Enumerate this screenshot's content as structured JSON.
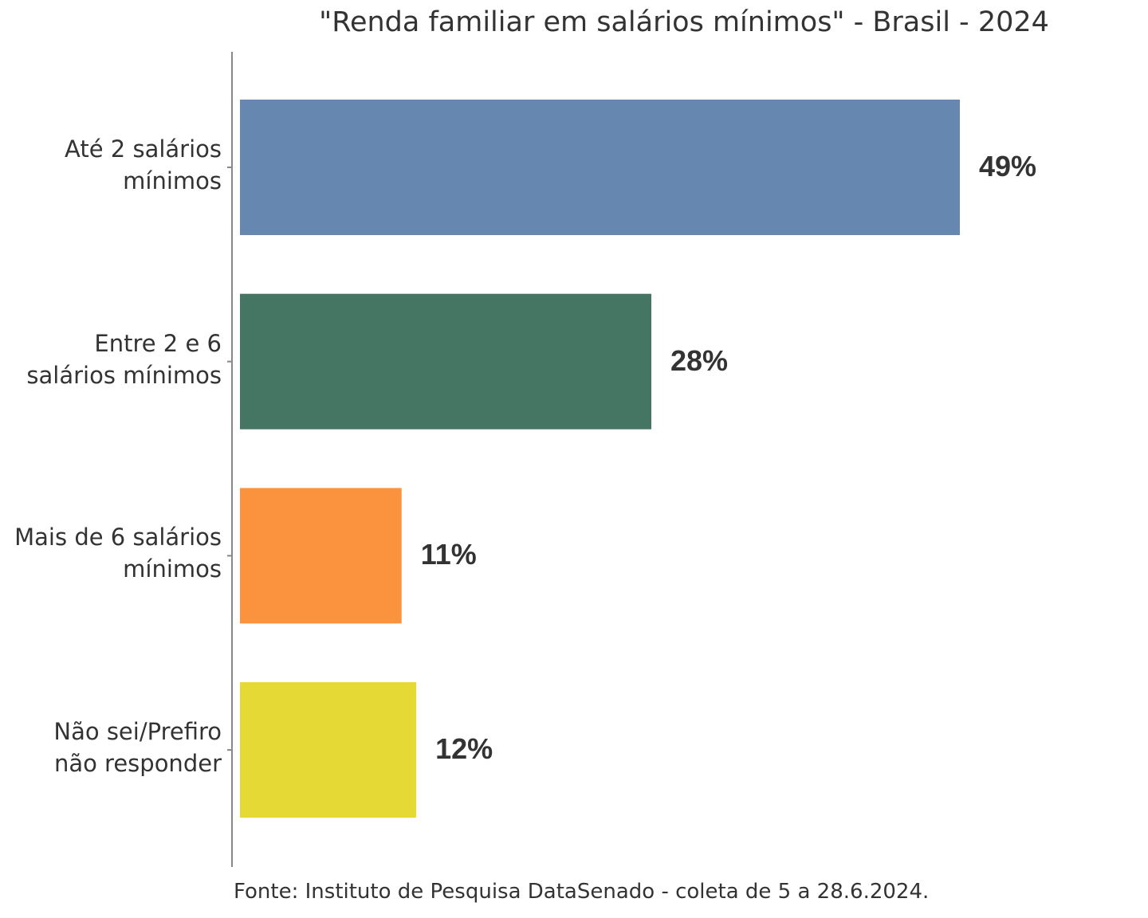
{
  "chart_data": {
    "type": "bar",
    "orientation": "horizontal",
    "title": "\"Renda familiar em salários mínimos\" - Brasil - 2024",
    "source": "Fonte: Instituto de Pesquisa DataSenado - coleta de 5 a 28.6.2024.",
    "categories": [
      "Até 2 salários mínimos",
      "Entre 2 e 6 salários mínimos",
      "Mais de 6 salários mínimos",
      "Não sei/Prefiro não responder"
    ],
    "category_lines": [
      [
        "Até 2 salários",
        "mínimos"
      ],
      [
        "Entre 2 e 6",
        "salários mínimos"
      ],
      [
        "Mais de 6 salários",
        "mínimos"
      ],
      [
        "Não sei/Prefiro",
        "não responder"
      ]
    ],
    "values": [
      49,
      28,
      11,
      12
    ],
    "labels": [
      "49%",
      "28%",
      "11%",
      "12%"
    ],
    "colors": [
      "#6688B0",
      "#457563",
      "#FB923D",
      "#E5D935"
    ],
    "xlim": [
      0,
      61
    ],
    "grid": false,
    "legend": "none"
  }
}
